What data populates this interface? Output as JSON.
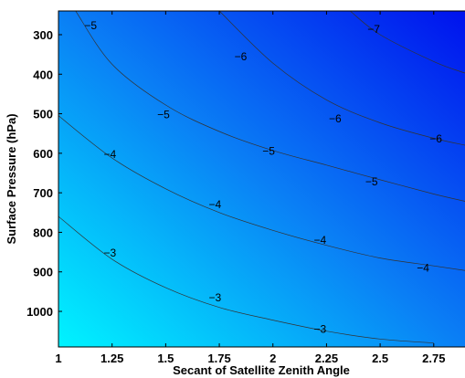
{
  "chart_data": {
    "type": "contour",
    "xlabel": "Secant of Satellite Zenith Angle",
    "ylabel": "Surface Pressure (hPa)",
    "xlim": [
      1,
      2.9
    ],
    "ylim": [
      1090,
      240
    ],
    "x_ticks": [
      1,
      1.25,
      1.5,
      1.75,
      2,
      2.25,
      2.5,
      2.75
    ],
    "x_tick_labels": [
      "1",
      "1.25",
      "1.5",
      "1.75",
      "2",
      "2.25",
      "2.5",
      "2.75"
    ],
    "y_ticks": [
      300,
      400,
      500,
      600,
      700,
      800,
      900,
      1000
    ],
    "y_tick_labels": [
      "300",
      "400",
      "500",
      "600",
      "700",
      "800",
      "900",
      "1000"
    ],
    "colormap": {
      "low_corner": "#0011ee",
      "high_corner": "#00f4ff"
    },
    "contours": [
      {
        "level": -3,
        "points": [
          [
            1,
            760
          ],
          [
            1.25,
            868
          ],
          [
            1.5,
            940
          ],
          [
            1.75,
            990
          ],
          [
            2,
            1022
          ],
          [
            2.25,
            1050
          ],
          [
            2.5,
            1070
          ],
          [
            2.75,
            1080
          ]
        ],
        "labels": [
          {
            "text": "−3",
            "x": 1.24,
            "y": 852
          },
          {
            "text": "−3",
            "x": 1.73,
            "y": 965
          },
          {
            "text": "−3",
            "x": 2.22,
            "y": 1045
          }
        ]
      },
      {
        "level": -4,
        "points": [
          [
            1,
            505
          ],
          [
            1.25,
            612
          ],
          [
            1.5,
            690
          ],
          [
            1.75,
            750
          ],
          [
            2,
            795
          ],
          [
            2.25,
            833
          ],
          [
            2.5,
            865
          ],
          [
            2.75,
            885
          ],
          [
            2.9,
            897
          ]
        ],
        "labels": [
          {
            "text": "−4",
            "x": 1.24,
            "y": 603
          },
          {
            "text": "−4",
            "x": 1.73,
            "y": 730
          },
          {
            "text": "−4",
            "x": 2.22,
            "y": 820
          },
          {
            "text": "−4",
            "x": 2.7,
            "y": 890
          }
        ]
      },
      {
        "level": -5,
        "points": [
          [
            1.08,
            240
          ],
          [
            1.25,
            375
          ],
          [
            1.5,
            478
          ],
          [
            1.75,
            545
          ],
          [
            2,
            593
          ],
          [
            2.25,
            630
          ],
          [
            2.5,
            667
          ],
          [
            2.75,
            703
          ],
          [
            2.9,
            722
          ]
        ],
        "labels": [
          {
            "text": "−5",
            "x": 1.15,
            "y": 277
          },
          {
            "text": "−5",
            "x": 1.49,
            "y": 502
          },
          {
            "text": "−5",
            "x": 1.98,
            "y": 595
          },
          {
            "text": "−5",
            "x": 2.46,
            "y": 672
          }
        ]
      },
      {
        "level": -6,
        "points": [
          [
            1.75,
            240
          ],
          [
            2,
            372
          ],
          [
            2.25,
            465
          ],
          [
            2.5,
            523
          ],
          [
            2.75,
            562
          ],
          [
            2.9,
            580
          ]
        ],
        "labels": [
          {
            "text": "−6",
            "x": 1.85,
            "y": 356
          },
          {
            "text": "−6",
            "x": 2.29,
            "y": 512
          },
          {
            "text": "−6",
            "x": 2.76,
            "y": 563
          }
        ]
      },
      {
        "level": -7,
        "points": [
          [
            2.36,
            240
          ],
          [
            2.5,
            300
          ],
          [
            2.75,
            368
          ],
          [
            2.9,
            398
          ]
        ],
        "labels": [
          {
            "text": "−7",
            "x": 2.47,
            "y": 286
          },
          {
            "text": "−7",
            "x": 2.92,
            "y": 413
          }
        ]
      }
    ]
  }
}
